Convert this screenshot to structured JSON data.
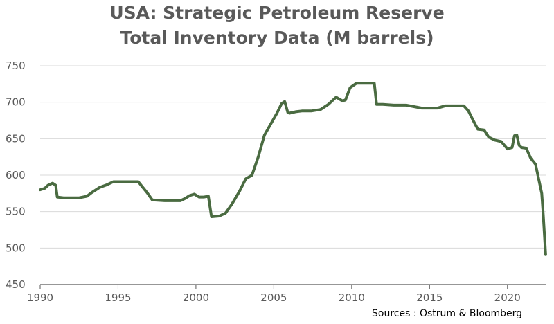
{
  "chart_data": {
    "type": "line",
    "title": "USA: Strategic Petroleum Reserve",
    "subtitle": "Total Inventory Data (M barrels)",
    "source": "Sources : Ostrum & Bloomberg",
    "xlim": [
      1990,
      2022.5
    ],
    "ylim": [
      450,
      750
    ],
    "x_ticks": [
      1990,
      1995,
      2000,
      2005,
      2010,
      2015,
      2020
    ],
    "y_ticks": [
      450,
      500,
      550,
      600,
      650,
      700,
      750
    ],
    "grid": true,
    "line_color": "#4a6b41",
    "series": [
      {
        "x": [
          1990.0,
          1990.3,
          1990.5,
          1990.8,
          1991.0,
          1991.1,
          1991.5,
          1992.0,
          1992.5,
          1993.0,
          1993.3,
          1993.8,
          1994.3,
          1994.7,
          1995.5,
          1996.3,
          1996.6,
          1996.9,
          1997.2,
          1998.0,
          1998.6,
          1999.0,
          1999.3,
          1999.6,
          1999.9,
          2000.2,
          2000.5,
          2000.8,
          2001.0,
          2001.5,
          2001.9,
          2002.3,
          2002.8,
          2003.2,
          2003.6,
          2004.0,
          2004.4,
          2004.8,
          2005.2,
          2005.5,
          2005.7,
          2005.9,
          2006.0,
          2006.4,
          2006.8,
          2007.4,
          2008.0,
          2008.5,
          2009.0,
          2009.4,
          2009.6,
          2009.9,
          2010.3,
          2011.0,
          2011.45,
          2011.6,
          2012.0,
          2012.7,
          2013.5,
          2014.5,
          2015.0,
          2015.5,
          2016.0,
          2016.6,
          2017.2,
          2017.5,
          2017.8,
          2018.1,
          2018.5,
          2018.8,
          2019.2,
          2019.6,
          2020.0,
          2020.3,
          2020.45,
          2020.6,
          2020.75,
          2020.9,
          2021.2,
          2021.5,
          2021.8,
          2022.0,
          2022.2,
          2022.3,
          2022.45
        ],
        "values": [
          580,
          582,
          586,
          589,
          586,
          570,
          569,
          569,
          569,
          571,
          576,
          583,
          587,
          591,
          591,
          591,
          583,
          575,
          566,
          565,
          565,
          565,
          568,
          572,
          574,
          570,
          570,
          571,
          543,
          544,
          548,
          560,
          578,
          595,
          600,
          625,
          655,
          670,
          685,
          698,
          701,
          686,
          685,
          687,
          688,
          688,
          690,
          697,
          707,
          702,
          703,
          720,
          726,
          726,
          726,
          697,
          697,
          696,
          696,
          692,
          692,
          692,
          695,
          695,
          695,
          688,
          675,
          663,
          662,
          652,
          648,
          646,
          636,
          638,
          654,
          655,
          641,
          638,
          637,
          623,
          615,
          595,
          575,
          545,
          491
        ]
      }
    ]
  }
}
